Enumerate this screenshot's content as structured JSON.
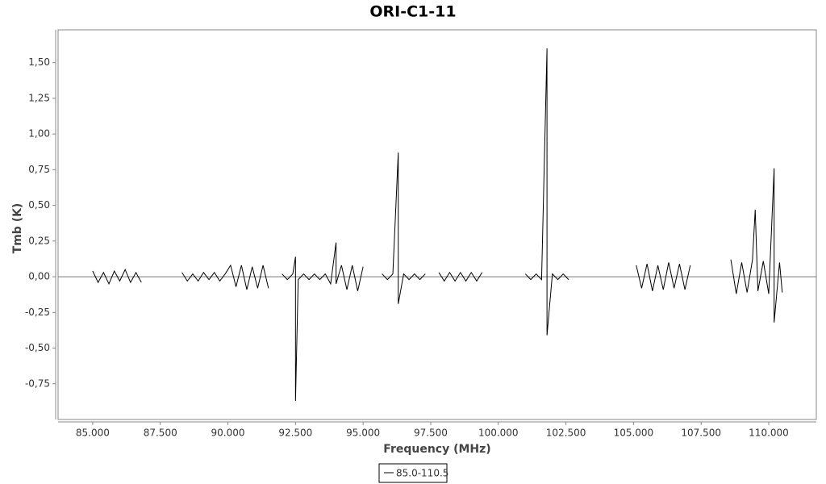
{
  "chart_data": {
    "type": "line",
    "title": "ORI-C1-11",
    "x_label": "Frequency (MHz)",
    "y_label": "Tmb (K)",
    "xlim": [
      83.72,
      111.76
    ],
    "ylim": [
      -1.0,
      1.73
    ],
    "xticks": [
      {
        "value": 85,
        "label": "85.000"
      },
      {
        "value": 87.5,
        "label": "87.500"
      },
      {
        "value": 90,
        "label": "90.000"
      },
      {
        "value": 92.5,
        "label": "92.500"
      },
      {
        "value": 95,
        "label": "95.000"
      },
      {
        "value": 97.5,
        "label": "97.500"
      },
      {
        "value": 100,
        "label": "100.000"
      },
      {
        "value": 102.5,
        "label": "102.500"
      },
      {
        "value": 105,
        "label": "105.000"
      },
      {
        "value": 107.5,
        "label": "107.500"
      },
      {
        "value": 110,
        "label": "110.000"
      }
    ],
    "yticks": [
      {
        "value": -0.75,
        "label": "-0,75"
      },
      {
        "value": -0.5,
        "label": "-0,50"
      },
      {
        "value": -0.25,
        "label": "-0,25"
      },
      {
        "value": 0,
        "label": "0,00"
      },
      {
        "value": 0.25,
        "label": "0,25"
      },
      {
        "value": 0.5,
        "label": "0,50"
      },
      {
        "value": 0.75,
        "label": "0,75"
      },
      {
        "value": 1,
        "label": "1,00"
      },
      {
        "value": 1.25,
        "label": "1,25"
      },
      {
        "value": 1.5,
        "label": "1,50"
      }
    ],
    "series": [
      {
        "name": "85.0-110.5",
        "color": "#000000",
        "x": [
          85.0,
          85.2,
          85.4,
          85.6,
          85.8,
          86.0,
          86.2,
          86.4,
          86.6,
          86.8,
          87.5,
          88.3,
          88.5,
          88.7,
          88.9,
          89.1,
          89.3,
          89.5,
          89.7,
          89.9,
          90.1,
          90.3,
          90.5,
          90.7,
          90.9,
          91.1,
          91.3,
          91.5,
          91.75,
          92.0,
          92.2,
          92.4,
          92.5,
          92.5,
          92.6,
          92.8,
          93.0,
          93.2,
          93.4,
          93.6,
          93.8,
          94.0,
          94.0,
          94.2,
          94.4,
          94.6,
          94.8,
          95.0,
          95.35,
          95.7,
          95.9,
          96.1,
          96.3,
          96.3,
          96.5,
          96.7,
          96.9,
          97.1,
          97.3,
          97.55,
          97.8,
          98.0,
          98.2,
          98.4,
          98.6,
          98.8,
          99.0,
          99.2,
          99.4,
          100.2,
          101.0,
          101.2,
          101.4,
          101.6,
          101.8,
          101.8,
          102.0,
          102.2,
          102.4,
          102.6,
          103.85,
          105.1,
          105.3,
          105.5,
          105.7,
          105.9,
          106.1,
          106.3,
          106.5,
          106.7,
          106.9,
          107.1,
          107.9,
          108.6,
          108.8,
          109.0,
          109.2,
          109.4,
          109.5,
          109.6,
          109.8,
          110.0,
          110.2,
          110.2,
          110.4,
          110.5
        ],
        "values": [
          0.04,
          -0.04,
          0.03,
          -0.05,
          0.04,
          -0.03,
          0.05,
          -0.04,
          0.03,
          -0.04,
          null,
          0.03,
          -0.03,
          0.02,
          -0.03,
          0.03,
          -0.02,
          0.03,
          -0.03,
          0.02,
          0.08,
          -0.07,
          0.08,
          -0.09,
          0.07,
          -0.08,
          0.08,
          -0.08,
          null,
          0.02,
          -0.02,
          0.02,
          0.14,
          -0.87,
          -0.02,
          0.02,
          -0.02,
          0.02,
          -0.02,
          0.02,
          -0.05,
          0.24,
          -0.05,
          0.08,
          -0.09,
          0.08,
          -0.1,
          0.07,
          null,
          0.02,
          -0.02,
          0.02,
          0.87,
          -0.19,
          0.02,
          -0.02,
          0.02,
          -0.02,
          0.02,
          null,
          0.03,
          -0.03,
          0.03,
          -0.03,
          0.03,
          -0.03,
          0.03,
          -0.03,
          0.03,
          null,
          0.02,
          -0.02,
          0.02,
          -0.02,
          1.6,
          -0.41,
          0.02,
          -0.02,
          0.02,
          -0.02,
          null,
          0.08,
          -0.08,
          0.09,
          -0.1,
          0.08,
          -0.09,
          0.1,
          -0.08,
          0.09,
          -0.09,
          0.08,
          null,
          0.12,
          -0.12,
          0.1,
          -0.11,
          0.12,
          0.47,
          -0.1,
          0.11,
          -0.12,
          0.76,
          -0.32,
          0.1,
          -0.11
        ]
      }
    ],
    "legend": "bottom-center"
  }
}
